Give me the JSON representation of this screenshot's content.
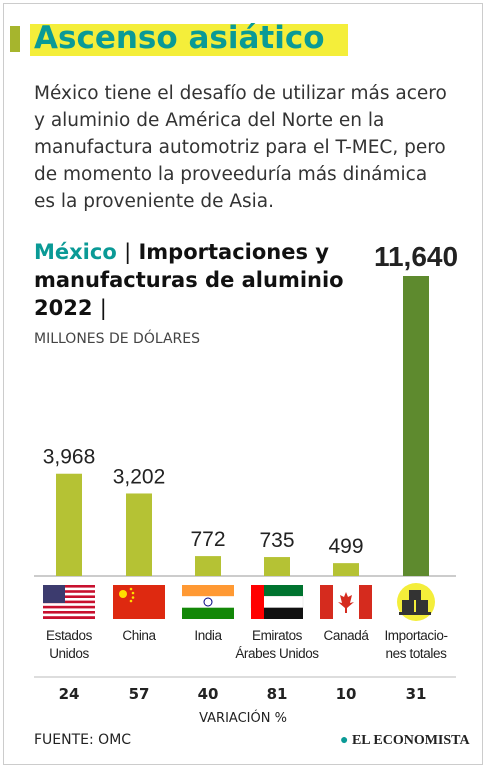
{
  "chart_data": {
    "type": "bar",
    "title": "Ascenso asiático",
    "subtitle": "México tiene el desafío de utilizar más acero y aluminio de América del Norte en la manufactura automotriz para el T-MEC, pero de momento la proveeduría más dinámica es la proveniente de Asia.",
    "chart_title_country": "México",
    "chart_title": "Importaciones y manufacturas de aluminio 2022",
    "units": "MILLONES DE DÓLARES",
    "categories": [
      "Estados\nUnidos",
      "China",
      "India",
      "Emiratos\nÁrabes Unidos",
      "Canadá",
      "Importacio-\nnes totales"
    ],
    "values": [
      3968,
      3202,
      772,
      735,
      499,
      11640
    ],
    "value_labels": [
      "3,968",
      "3,202",
      "772",
      "735",
      "499",
      "11,640"
    ],
    "colors": [
      "#b5c234",
      "#b5c234",
      "#b5c234",
      "#b5c234",
      "#b5c234",
      "#5e8a2e"
    ],
    "variation": [
      24,
      57,
      40,
      81,
      10,
      31
    ],
    "variation_label": "VARIACIÓN %",
    "source": "FUENTE: OMC",
    "brand": "EL ECONOMISTA"
  }
}
